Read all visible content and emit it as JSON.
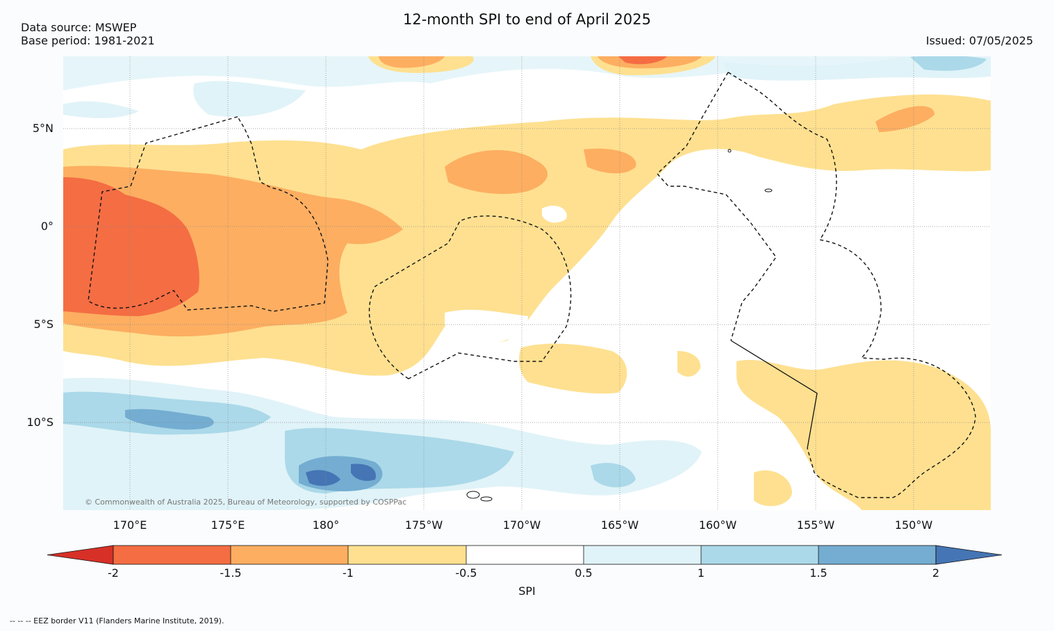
{
  "title": "12-month SPI to end of April 2025",
  "data_source": "Data source: MSWEP",
  "base_period": "Base period: 1981-2021",
  "issued": "Issued: 07/05/2025",
  "copyright": "© Commonwealth of Australia 2025, Bureau of Meteorology, supported by COSPPac",
  "footnote": "--  --  -- EEZ border V11 (Flanders Marine Institute, 2019).",
  "lat_labels": [
    "5°N",
    "0°",
    "5°S",
    "10°S"
  ],
  "lon_labels": [
    "170°E",
    "175°E",
    "180°",
    "175°W",
    "170°W",
    "165°W",
    "160°W",
    "155°W",
    "150°W"
  ],
  "colorbar": {
    "label": "SPI",
    "ticks": [
      "-2",
      "-1.5",
      "-1",
      "-0.5",
      "0.5",
      "1",
      "1.5",
      "2"
    ],
    "colors": [
      "#d73027",
      "#f46d43",
      "#fdae61",
      "#fee090",
      "#ffffff",
      "#e0f3f8",
      "#abd9e9",
      "#74add1",
      "#4575b4"
    ]
  },
  "map_extent": {
    "lon_min": 166.7,
    "lon_max": 213.3,
    "lat_min": -14.5,
    "lat_max": 8.7
  }
}
